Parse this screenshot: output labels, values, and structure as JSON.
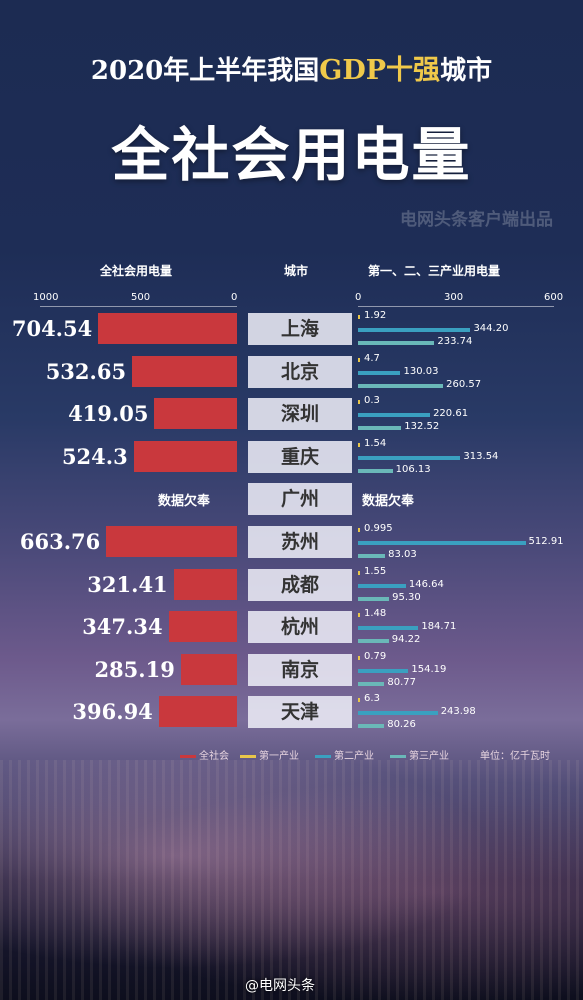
{
  "title": {
    "prefix": "2020年上半年我国",
    "highlight": "GDP十强",
    "suffix": "城市"
  },
  "subtitle": "全社会用电量",
  "source": "电网头条客户端出品",
  "headers": {
    "left": "全社会用电量",
    "middle": "城市",
    "right": "第一、二、三产业用电量"
  },
  "colors": {
    "total": "#c9383d",
    "primary": "#e8c64a",
    "secondary": "#3aa0c0",
    "tertiary": "#6ab8b8"
  },
  "legend": {
    "total": "全社会",
    "primary": "第一产业",
    "secondary": "第二产业",
    "tertiary": "第三产业",
    "unit": "单位：亿千瓦时"
  },
  "watermark": "@电网头条",
  "chart_data": {
    "type": "bar",
    "left_axis": {
      "ticks": [
        "1000",
        "500",
        "0"
      ],
      "range": [
        1000,
        0
      ]
    },
    "right_axis": {
      "ticks": [
        "0",
        "300",
        "600"
      ],
      "range": [
        0,
        600
      ]
    },
    "series_names": [
      "全社会",
      "第一产业",
      "第二产业",
      "第三产业"
    ],
    "rows": [
      {
        "city": "上海",
        "total": 704.54,
        "total_label": "704.54",
        "primary": 1.92,
        "secondary": 344.2,
        "tertiary": 233.74,
        "labels": [
          "1.92",
          "344.20",
          "233.74"
        ]
      },
      {
        "city": "北京",
        "total": 532.65,
        "total_label": "532.65",
        "primary": 4.7,
        "secondary": 130.03,
        "tertiary": 260.57,
        "labels": [
          "4.7",
          "130.03",
          "260.57"
        ]
      },
      {
        "city": "深圳",
        "total": 419.05,
        "total_label": "419.05",
        "primary": 0.3,
        "secondary": 220.61,
        "tertiary": 132.52,
        "labels": [
          "0.3",
          "220.61",
          "132.52"
        ]
      },
      {
        "city": "重庆",
        "total": 524.3,
        "total_label": "524.3",
        "primary": 1.54,
        "secondary": 313.54,
        "tertiary": 106.13,
        "labels": [
          "1.54",
          "313.54",
          "106.13"
        ]
      },
      {
        "city": "广州",
        "missing": true,
        "na_left": "数据欠奉",
        "na_right": "数据欠奉"
      },
      {
        "city": "苏州",
        "total": 663.76,
        "total_label": "663.76",
        "primary": 0.995,
        "secondary": 512.91,
        "tertiary": 83.03,
        "labels": [
          "0.995",
          "512.91",
          "83.03"
        ]
      },
      {
        "city": "成都",
        "total": 321.41,
        "total_label": "321.41",
        "primary": 1.55,
        "secondary": 146.64,
        "tertiary": 95.3,
        "labels": [
          "1.55",
          "146.64",
          "95.30"
        ]
      },
      {
        "city": "杭州",
        "total": 347.34,
        "total_label": "347.34",
        "primary": 1.48,
        "secondary": 184.71,
        "tertiary": 94.22,
        "labels": [
          "1.48",
          "184.71",
          "94.22"
        ]
      },
      {
        "city": "南京",
        "total": 285.19,
        "total_label": "285.19",
        "primary": 0.79,
        "secondary": 154.19,
        "tertiary": 80.77,
        "labels": [
          "0.79",
          "154.19",
          "80.77"
        ]
      },
      {
        "city": "天津",
        "total": 396.94,
        "total_label": "396.94",
        "primary": 6.3,
        "secondary": 243.98,
        "tertiary": 80.26,
        "labels": [
          "6.3",
          "243.98",
          "80.26"
        ]
      }
    ]
  }
}
